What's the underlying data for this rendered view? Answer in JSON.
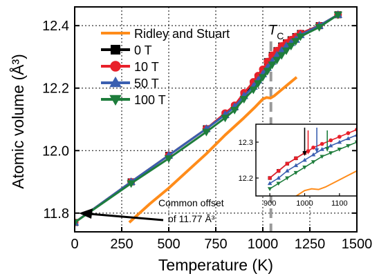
{
  "chart_data": {
    "type": "line",
    "xlabel": "Temperature (K)",
    "ylabel": "Atomic volume (Å³)",
    "xlim": [
      0,
      1500
    ],
    "ylim": [
      11.74,
      12.46
    ],
    "xticks": [
      0,
      250,
      500,
      750,
      1000,
      1250,
      1500
    ],
    "xtick_labels": [
      "0",
      "250",
      "500",
      "750",
      "1000",
      "1250",
      "1500"
    ],
    "yticks": [
      11.8,
      12.0,
      12.2,
      12.4
    ],
    "ytick_labels": [
      "11.8",
      "12.0",
      "12.2",
      "12.4"
    ],
    "grid": true,
    "legend_position": "top-left",
    "tc_label": "T",
    "tc_subscript": "C",
    "tc_value": 1043,
    "annotation_line1": "Common offset",
    "annotation_line2": "of 11.77 Å³",
    "series": [
      {
        "name": "Ridley and Stuart",
        "color": "#ff8c1a",
        "marker": "none",
        "x": [
          290,
          400,
          500,
          600,
          700,
          800,
          900,
          960,
          1000,
          1020,
          1040,
          1060,
          1100,
          1140,
          1180
        ],
        "y": [
          11.77,
          11.83,
          11.88,
          11.935,
          11.99,
          12.05,
          12.105,
          12.14,
          12.165,
          12.17,
          12.168,
          12.175,
          12.195,
          12.215,
          12.235
        ]
      },
      {
        "name": "0 T",
        "color": "#000000",
        "marker": "square",
        "x": [
          0,
          300,
          500,
          700,
          800,
          850,
          900,
          950,
          975,
          1000,
          1025,
          1050,
          1075,
          1100,
          1125,
          1150,
          1175,
          1200,
          1300,
          1400
        ],
        "y": [
          11.77,
          11.9,
          11.985,
          12.07,
          12.115,
          12.14,
          12.18,
          12.215,
          12.235,
          12.255,
          12.285,
          12.305,
          12.32,
          12.335,
          12.345,
          12.355,
          12.365,
          12.375,
          12.4,
          12.435
        ]
      },
      {
        "name": "10 T",
        "color": "#e8202a",
        "marker": "circle",
        "x": [
          0,
          300,
          500,
          700,
          800,
          850,
          900,
          950,
          975,
          1000,
          1025,
          1050,
          1075,
          1100,
          1125,
          1150,
          1175,
          1200,
          1300,
          1400
        ],
        "y": [
          11.77,
          11.9,
          11.985,
          12.07,
          12.12,
          12.145,
          12.185,
          12.22,
          12.24,
          12.26,
          12.285,
          12.305,
          12.32,
          12.335,
          12.345,
          12.355,
          12.365,
          12.375,
          12.4,
          12.435
        ]
      },
      {
        "name": "50 T",
        "color": "#3a5fb0",
        "marker": "triangle-up",
        "x": [
          0,
          300,
          500,
          700,
          800,
          850,
          900,
          950,
          975,
          1000,
          1025,
          1050,
          1075,
          1100,
          1125,
          1150,
          1175,
          1200,
          1300,
          1400
        ],
        "y": [
          11.77,
          11.9,
          11.985,
          12.07,
          12.115,
          12.14,
          12.175,
          12.205,
          12.225,
          12.245,
          12.265,
          12.285,
          12.305,
          12.32,
          12.335,
          12.345,
          12.355,
          12.37,
          12.4,
          12.435
        ]
      },
      {
        "name": "100 T",
        "color": "#1e7d3c",
        "marker": "triangle-down",
        "x": [
          0,
          300,
          500,
          700,
          800,
          850,
          900,
          950,
          975,
          1000,
          1025,
          1050,
          1075,
          1100,
          1125,
          1150,
          1175,
          1200,
          1300,
          1400
        ],
        "y": [
          11.77,
          11.895,
          11.975,
          12.06,
          12.105,
          12.13,
          12.165,
          12.195,
          12.215,
          12.235,
          12.255,
          12.275,
          12.29,
          12.305,
          12.32,
          12.335,
          12.35,
          12.365,
          12.395,
          12.435
        ]
      }
    ],
    "inset": {
      "xlim": [
        860,
        1150
      ],
      "ylim": [
        12.15,
        12.35
      ],
      "xticks": [
        900,
        1000,
        1100
      ],
      "xtick_labels": [
        "900",
        "1000",
        "1100"
      ],
      "yticks": [
        12.2,
        12.3
      ],
      "ytick_labels": [
        "12.2",
        "12.3"
      ],
      "series": [
        {
          "name": "Ridley and Stuart",
          "color": "#ff8c1a",
          "marker": "none",
          "x": [
            960,
            1000,
            1020,
            1040,
            1060,
            1100,
            1150
          ],
          "y": [
            12.14,
            12.165,
            12.17,
            12.168,
            12.175,
            12.195,
            12.22
          ]
        },
        {
          "name": "0 T",
          "color": "#000000",
          "marker": "square",
          "x": [
            900,
            925,
            950,
            975,
            1000
          ],
          "y": [
            12.2,
            12.22,
            12.24,
            12.255,
            12.27
          ]
        },
        {
          "name": "10 T",
          "color": "#e8202a",
          "marker": "circle",
          "x": [
            900,
            925,
            950,
            975,
            1000,
            1010,
            1025,
            1050,
            1075,
            1100,
            1125,
            1150
          ],
          "y": [
            12.2,
            12.22,
            12.24,
            12.255,
            12.27,
            12.275,
            12.285,
            12.295,
            12.305,
            12.315,
            12.325,
            12.335
          ]
        },
        {
          "name": "50 T",
          "color": "#3a5fb0",
          "marker": "triangle-up",
          "x": [
            900,
            925,
            950,
            975,
            1000,
            1025,
            1050,
            1075,
            1100,
            1125,
            1150
          ],
          "y": [
            12.185,
            12.2,
            12.22,
            12.235,
            12.25,
            12.265,
            12.28,
            12.29,
            12.3,
            12.31,
            12.32
          ]
        },
        {
          "name": "100 T",
          "color": "#1e7d3c",
          "marker": "triangle-down",
          "x": [
            900,
            925,
            950,
            975,
            1000,
            1025,
            1050,
            1075,
            1100,
            1125,
            1150
          ],
          "y": [
            12.17,
            12.185,
            12.2,
            12.215,
            12.23,
            12.245,
            12.26,
            12.27,
            12.28,
            12.29,
            12.3
          ]
        }
      ],
      "arrows": [
        {
          "x": 1000,
          "color": "#000000"
        },
        {
          "x": 1010,
          "color": "#e8202a"
        },
        {
          "x": 1035,
          "color": "#3a5fb0"
        },
        {
          "x": 1065,
          "color": "#1e7d3c"
        }
      ]
    }
  }
}
